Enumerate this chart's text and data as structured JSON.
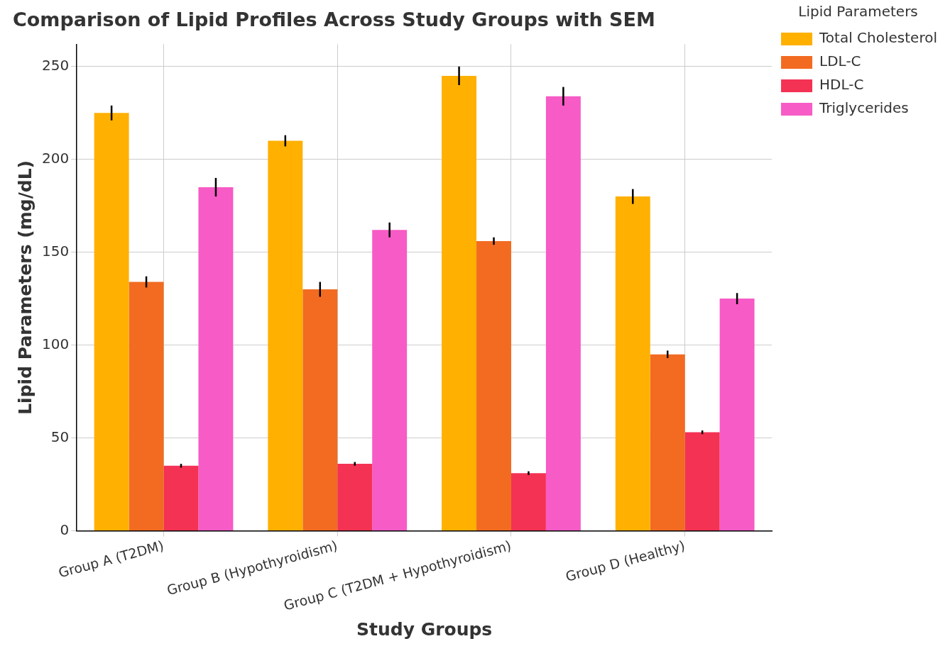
{
  "chart_data": {
    "type": "bar",
    "title": "Comparison of Lipid Profiles Across Study Groups with SEM",
    "xlabel": "Study Groups",
    "ylabel": "Lipid Parameters (mg/dL)",
    "legend_title": "Lipid Parameters",
    "categories": [
      "Group A (T2DM)",
      "Group B (Hypothyroidism)",
      "Group C (T2DM + Hypothyroidism)",
      "Group D (Healthy)"
    ],
    "series": [
      {
        "name": "Total Cholesterol",
        "color": "#ffb000",
        "values": [
          225,
          210,
          245,
          180
        ],
        "errors": [
          4,
          3,
          5,
          4
        ]
      },
      {
        "name": "LDL-C",
        "color": "#f26b21",
        "values": [
          134,
          130,
          156,
          95
        ],
        "errors": [
          3,
          4,
          2,
          2
        ]
      },
      {
        "name": "HDL-C",
        "color": "#f43254",
        "values": [
          35,
          36,
          31,
          53
        ],
        "errors": [
          1,
          1,
          1,
          1
        ]
      },
      {
        "name": "Triglycerides",
        "color": "#f75bc5",
        "values": [
          185,
          162,
          234,
          125
        ],
        "errors": [
          5,
          4,
          5,
          3
        ]
      }
    ],
    "ylim": [
      0,
      262
    ],
    "yticks": [
      0,
      50,
      100,
      150,
      200,
      250
    ],
    "grid": true,
    "legend": "top right"
  }
}
